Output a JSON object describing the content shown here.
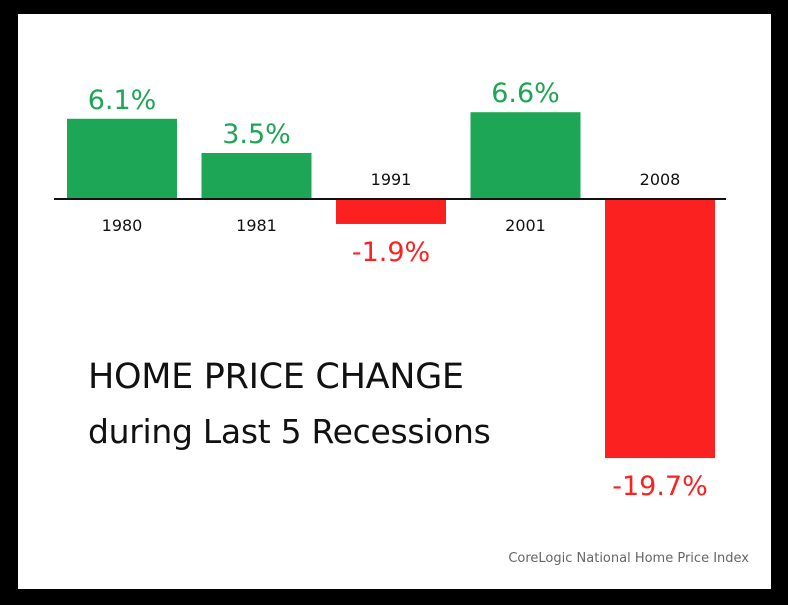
{
  "chart_data": {
    "type": "bar",
    "title": "HOME PRICE CHANGE",
    "subtitle": "during Last 5 Recessions",
    "categories": [
      "1980",
      "1981",
      "1991",
      "2001",
      "2008"
    ],
    "values": [
      6.1,
      3.5,
      -1.9,
      6.6,
      -19.7
    ],
    "value_labels": [
      "6.1%",
      "3.5%",
      "-1.9%",
      "6.6%",
      "-19.7%"
    ],
    "unit": "%",
    "colors": {
      "positive": "#1da655",
      "negative": "#fc2121",
      "axis": "#111111"
    },
    "xlabel": "",
    "ylabel": "",
    "grid": false,
    "legend": "none"
  },
  "footer": {
    "source": "CoreLogic National Home Price Index"
  }
}
